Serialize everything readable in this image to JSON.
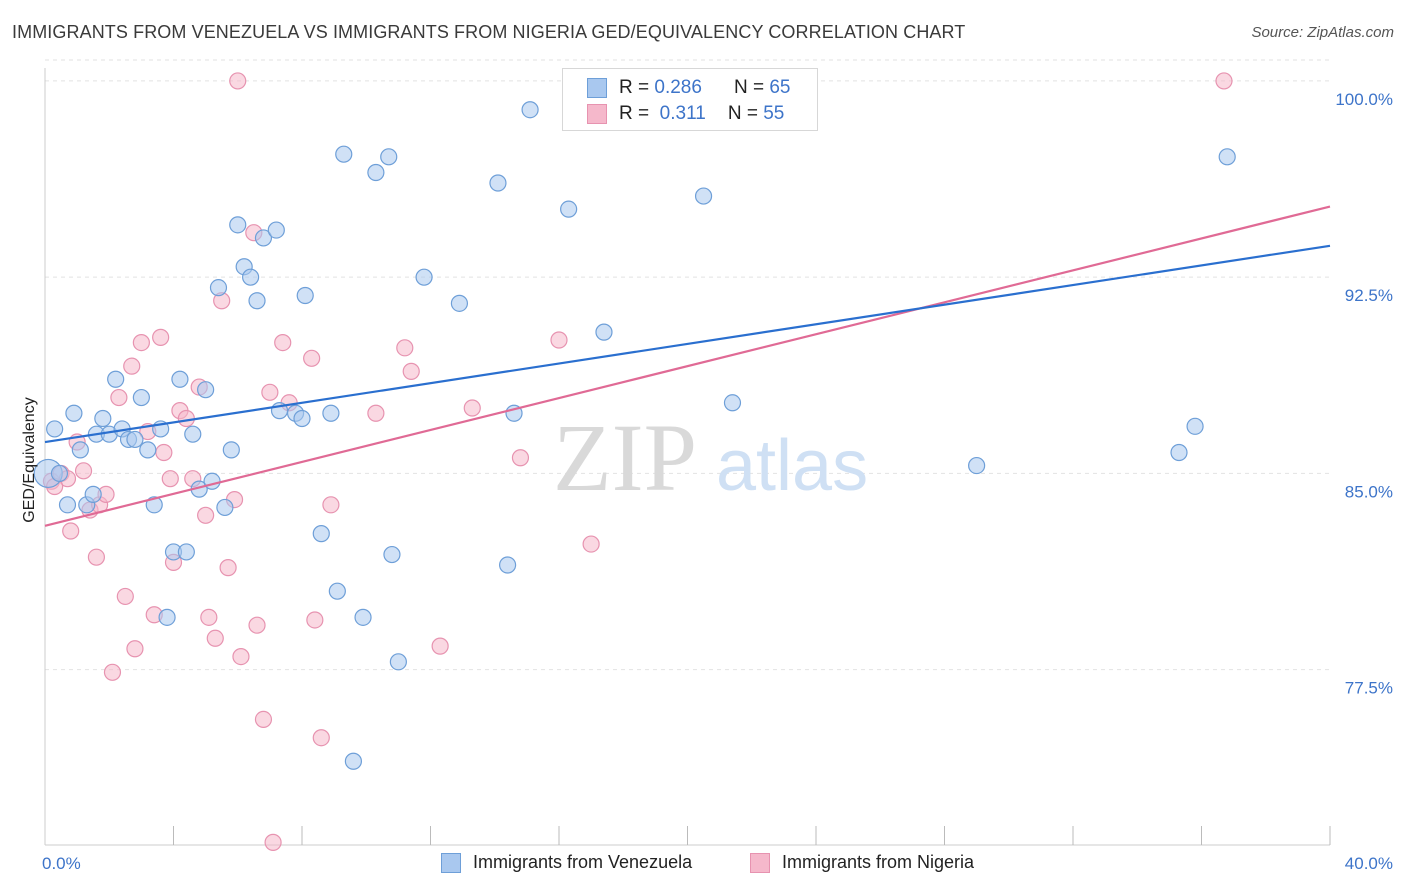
{
  "header": {
    "title": "IMMIGRANTS FROM VENEZUELA VS IMMIGRANTS FROM NIGERIA GED/EQUIVALENCY CORRELATION CHART",
    "source": "Source: ZipAtlas.com"
  },
  "legend_top": {
    "rows": [
      {
        "r_label": "R =",
        "r_value": "0.286",
        "n_label": "N =",
        "n_value": "65"
      },
      {
        "r_label": "R =",
        "r_value": " 0.311",
        "n_label": "N =",
        "n_value": "55"
      }
    ]
  },
  "watermark": {
    "zip": "ZIP",
    "atlas": "atlas"
  },
  "colors": {
    "venezuela_fill": "#a9c8ef",
    "venezuela_stroke": "#6e9fd8",
    "venezuela_line": "#2a6fcf",
    "nigeria_fill": "#f5b8cb",
    "nigeria_stroke": "#e793b0",
    "nigeria_line": "#e06a95",
    "tick_text": "#3d74c9",
    "grid": "#e2e2e2"
  },
  "chart_data": {
    "type": "scatter",
    "title": "IMMIGRANTS FROM VENEZUELA VS IMMIGRANTS FROM NIGERIA GED/EQUIVALENCY CORRELATION CHART",
    "xlabel": "",
    "ylabel": "GED/Equivalency",
    "xlim": [
      0,
      40
    ],
    "ylim": [
      70.8,
      100.8
    ],
    "x_tick_labels": [
      "0.0%",
      "40.0%"
    ],
    "y_ticks": [
      77.5,
      85.0,
      92.5,
      100.0
    ],
    "y_tick_labels": [
      "77.5%",
      "85.0%",
      "92.5%",
      "100.0%"
    ],
    "grid": "horizontal dashed",
    "legend_position": "bottom",
    "series": [
      {
        "name": "Immigrants from Venezuela",
        "R": 0.286,
        "N": 65,
        "trend": {
          "x": [
            0,
            40
          ],
          "y": [
            86.2,
            93.7
          ]
        },
        "points": [
          [
            0.1,
            85.0
          ],
          [
            0.3,
            86.7
          ],
          [
            0.45,
            85.0
          ],
          [
            0.7,
            83.8
          ],
          [
            0.9,
            87.3
          ],
          [
            1.1,
            85.9
          ],
          [
            1.3,
            83.8
          ],
          [
            1.5,
            84.2
          ],
          [
            1.6,
            86.5
          ],
          [
            1.8,
            87.1
          ],
          [
            2.0,
            86.5
          ],
          [
            2.2,
            88.6
          ],
          [
            2.4,
            86.7
          ],
          [
            2.6,
            86.3
          ],
          [
            2.8,
            86.3
          ],
          [
            3.0,
            87.9
          ],
          [
            3.2,
            85.9
          ],
          [
            3.4,
            83.8
          ],
          [
            3.6,
            86.7
          ],
          [
            3.8,
            79.5
          ],
          [
            4.0,
            82.0
          ],
          [
            4.2,
            88.6
          ],
          [
            4.4,
            82.0
          ],
          [
            4.6,
            86.5
          ],
          [
            4.8,
            84.4
          ],
          [
            5.0,
            88.2
          ],
          [
            5.2,
            84.7
          ],
          [
            5.4,
            92.1
          ],
          [
            5.6,
            83.7
          ],
          [
            5.8,
            85.9
          ],
          [
            6.0,
            94.5
          ],
          [
            6.2,
            92.9
          ],
          [
            6.4,
            92.5
          ],
          [
            6.6,
            91.6
          ],
          [
            6.8,
            94.0
          ],
          [
            7.2,
            94.3
          ],
          [
            7.3,
            87.4
          ],
          [
            7.8,
            87.3
          ],
          [
            8.0,
            87.1
          ],
          [
            8.1,
            91.8
          ],
          [
            8.6,
            82.7
          ],
          [
            8.9,
            87.3
          ],
          [
            9.1,
            80.5
          ],
          [
            9.3,
            97.2
          ],
          [
            9.6,
            74.0
          ],
          [
            9.9,
            79.5
          ],
          [
            10.3,
            96.5
          ],
          [
            10.7,
            97.1
          ],
          [
            10.8,
            81.9
          ],
          [
            11.0,
            77.8
          ],
          [
            11.8,
            92.5
          ],
          [
            12.9,
            91.5
          ],
          [
            14.1,
            96.1
          ],
          [
            14.4,
            81.5
          ],
          [
            14.6,
            87.3
          ],
          [
            15.1,
            98.9
          ],
          [
            16.3,
            95.1
          ],
          [
            17.4,
            90.4
          ],
          [
            20.5,
            95.6
          ],
          [
            21.4,
            87.7
          ],
          [
            21.5,
            100.0
          ],
          [
            29.0,
            85.3
          ],
          [
            35.3,
            85.8
          ],
          [
            35.8,
            86.8
          ],
          [
            36.8,
            97.1
          ]
        ]
      },
      {
        "name": "Immigrants from Nigeria",
        "R": 0.311,
        "N": 55,
        "trend": {
          "x": [
            0,
            40
          ],
          "y": [
            83.0,
            95.2
          ]
        },
        "points": [
          [
            0.2,
            84.7
          ],
          [
            0.5,
            85.0
          ],
          [
            0.7,
            84.8
          ],
          [
            0.8,
            82.8
          ],
          [
            1.0,
            86.2
          ],
          [
            1.2,
            85.1
          ],
          [
            1.4,
            83.6
          ],
          [
            1.6,
            81.8
          ],
          [
            1.7,
            83.8
          ],
          [
            1.9,
            84.2
          ],
          [
            2.1,
            77.4
          ],
          [
            2.3,
            87.9
          ],
          [
            2.5,
            80.3
          ],
          [
            2.7,
            89.1
          ],
          [
            2.8,
            78.3
          ],
          [
            3.0,
            90.0
          ],
          [
            3.2,
            86.6
          ],
          [
            3.4,
            79.6
          ],
          [
            3.6,
            90.2
          ],
          [
            3.7,
            85.8
          ],
          [
            3.9,
            84.8
          ],
          [
            4.0,
            81.6
          ],
          [
            4.2,
            87.4
          ],
          [
            4.4,
            87.1
          ],
          [
            4.6,
            84.8
          ],
          [
            4.8,
            88.3
          ],
          [
            5.0,
            83.4
          ],
          [
            5.1,
            79.5
          ],
          [
            5.3,
            78.7
          ],
          [
            5.5,
            91.6
          ],
          [
            5.7,
            81.4
          ],
          [
            5.9,
            84.0
          ],
          [
            6.0,
            100.0
          ],
          [
            6.1,
            78.0
          ],
          [
            6.5,
            94.2
          ],
          [
            6.6,
            79.2
          ],
          [
            6.8,
            75.6
          ],
          [
            7.0,
            88.1
          ],
          [
            7.1,
            70.9
          ],
          [
            7.4,
            90.0
          ],
          [
            7.6,
            87.7
          ],
          [
            8.3,
            89.4
          ],
          [
            8.4,
            79.4
          ],
          [
            8.6,
            74.9
          ],
          [
            8.9,
            83.8
          ],
          [
            10.3,
            87.3
          ],
          [
            11.2,
            89.8
          ],
          [
            11.4,
            88.9
          ],
          [
            12.3,
            78.4
          ],
          [
            13.3,
            87.5
          ],
          [
            14.8,
            85.6
          ],
          [
            16.0,
            90.1
          ],
          [
            17.0,
            82.3
          ],
          [
            36.7,
            100.0
          ],
          [
            0.3,
            84.5
          ]
        ]
      }
    ]
  },
  "bottom_legend": {
    "items": [
      {
        "label": "Immigrants from Venezuela"
      },
      {
        "label": "Immigrants from Nigeria"
      }
    ]
  }
}
